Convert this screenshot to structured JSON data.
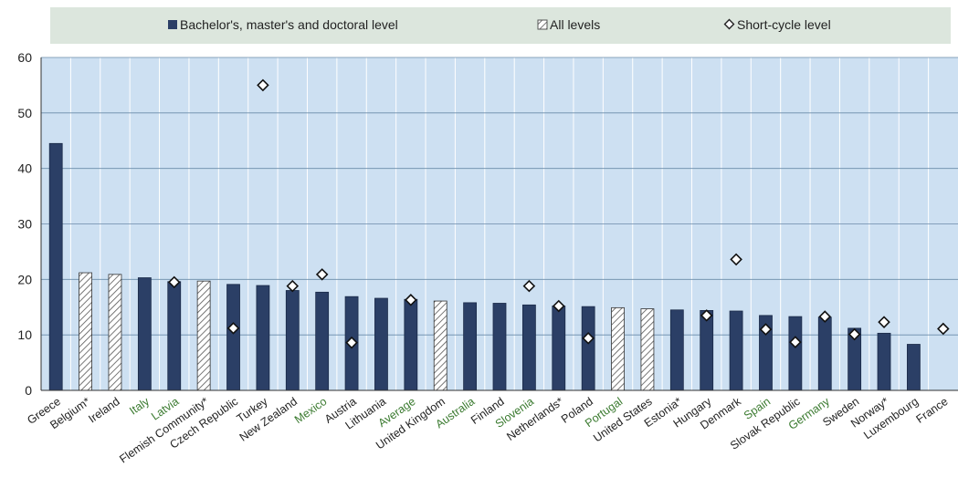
{
  "colors": {
    "legend_bg": "#dce6dd",
    "plot_bg": "#cde0f2",
    "bar_fill": "#2b3f66",
    "hatch_fill": "#ffffff",
    "hatch_stroke": "#555555",
    "grid": "#ffffff",
    "label_default": "#222222",
    "label_green": "#3a7a2f"
  },
  "legend": {
    "bachelor": "Bachelor's, master's and doctoral level",
    "all": "All levels",
    "short": "Short-cycle level"
  },
  "chart_data": {
    "type": "bar",
    "title": "",
    "xlabel": "",
    "ylabel": "",
    "ylim": [
      0,
      60
    ],
    "yticks": [
      0,
      10,
      20,
      30,
      40,
      50,
      60
    ],
    "grid": true,
    "legend_position": "top",
    "categories": [
      "Greece",
      "Belgium*",
      "Ireland",
      "Italy",
      "Latvia",
      "Flemish Community*",
      "Czech Republic",
      "Turkey",
      "New Zealand",
      "Mexico",
      "Austria",
      "Lithuania",
      "Average",
      "United Kingdom",
      "Australia",
      "Finland",
      "Slovenia",
      "Netherlands*",
      "Poland",
      "Portugal",
      "United States",
      "Estonia*",
      "Hungary",
      "Denmark",
      "Spain",
      "Slovak Republic",
      "Germany",
      "Sweden",
      "Norway*",
      "Luxembourg",
      "France"
    ],
    "label_colors": [
      "default",
      "default",
      "default",
      "green",
      "green",
      "default",
      "default",
      "default",
      "default",
      "green",
      "default",
      "default",
      "green",
      "default",
      "green",
      "default",
      "green",
      "default",
      "default",
      "green",
      "default",
      "default",
      "default",
      "default",
      "green",
      "default",
      "green",
      "default",
      "default",
      "default",
      "default"
    ],
    "series": [
      {
        "name": "Bachelor's, master's and doctoral level",
        "values": [
          44.5,
          null,
          null,
          20.3,
          19.6,
          null,
          19.1,
          18.9,
          18.0,
          17.7,
          16.9,
          16.6,
          16.4,
          null,
          15.8,
          15.7,
          15.4,
          15.2,
          15.1,
          null,
          null,
          14.5,
          14.4,
          14.3,
          13.5,
          13.3,
          13.2,
          11.2,
          10.3,
          8.3,
          null
        ]
      },
      {
        "name": "All levels",
        "values": [
          null,
          21.2,
          20.9,
          null,
          null,
          19.7,
          null,
          null,
          null,
          null,
          null,
          null,
          null,
          16.1,
          null,
          null,
          null,
          null,
          null,
          14.9,
          14.7,
          null,
          null,
          null,
          null,
          null,
          null,
          null,
          null,
          null,
          null
        ]
      },
      {
        "name": "Short-cycle level",
        "values": [
          null,
          null,
          null,
          null,
          19.5,
          null,
          11.2,
          55.0,
          18.8,
          20.9,
          8.6,
          null,
          16.3,
          null,
          null,
          null,
          18.8,
          15.2,
          9.4,
          null,
          null,
          null,
          13.5,
          23.6,
          11.0,
          8.7,
          13.3,
          10.1,
          12.3,
          null,
          11.1
        ]
      }
    ]
  }
}
